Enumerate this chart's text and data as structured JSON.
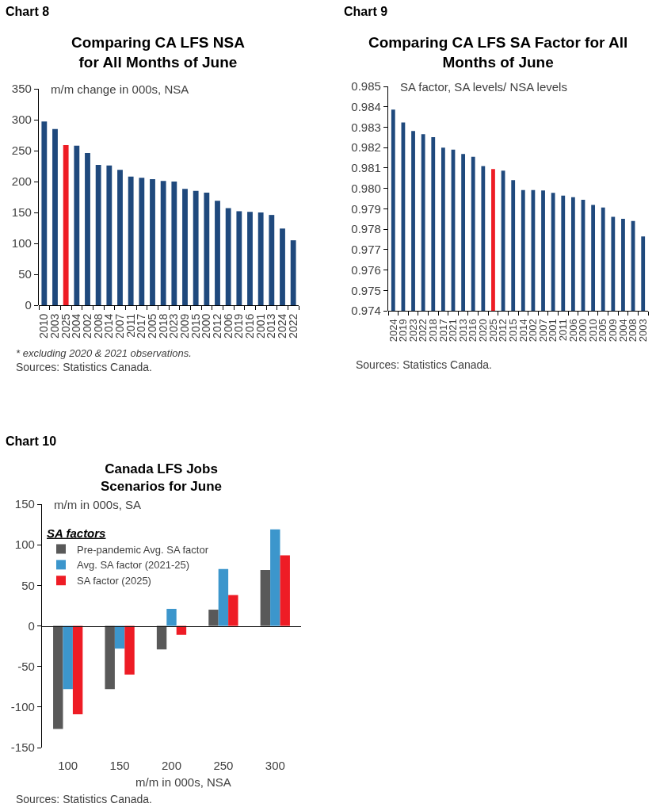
{
  "chart_data": [
    {
      "type": "bar",
      "title": "Comparing CA LFS NSA\nfor All Months of June",
      "ylabel": "m/m change in 000s, NSA",
      "categories": [
        "2010",
        "2003",
        "2025",
        "2004",
        "2002",
        "2008",
        "2014",
        "2007",
        "2011",
        "2017",
        "2005",
        "2018",
        "2023",
        "2009",
        "2015",
        "2000",
        "2012",
        "2006",
        "2019",
        "2016",
        "2001",
        "2013",
        "2024",
        "2022"
      ],
      "values": [
        297,
        285,
        259,
        258,
        246,
        227,
        226,
        219,
        208,
        206,
        204,
        201,
        200,
        188,
        185,
        182,
        169,
        157,
        152,
        151,
        150,
        146,
        124,
        105
      ],
      "colors": [
        "#1f497d",
        "#1f497d",
        "#ee1c25",
        "#1f497d",
        "#1f497d",
        "#1f497d",
        "#1f497d",
        "#1f497d",
        "#1f497d",
        "#1f497d",
        "#1f497d",
        "#1f497d",
        "#1f497d",
        "#1f497d",
        "#1f497d",
        "#1f497d",
        "#1f497d",
        "#1f497d",
        "#1f497d",
        "#1f497d",
        "#1f497d",
        "#1f497d",
        "#1f497d",
        "#1f497d"
      ],
      "ylim": [
        0,
        350
      ],
      "yticks": [
        0,
        50,
        100,
        150,
        200,
        250,
        300,
        350
      ],
      "annotations": [
        "Chart 8",
        "* excluding 2020 & 2021 observations.",
        "Sources: Statistics Canada."
      ]
    },
    {
      "type": "bar",
      "title": "Comparing CA LFS SA Factor for All\nMonths of June",
      "ylabel": "SA factor, SA levels/ NSA levels",
      "categories": [
        "2024",
        "2019",
        "2023",
        "2022",
        "2018",
        "2017",
        "2021",
        "2013",
        "2016",
        "2020",
        "2025",
        "2012",
        "2015",
        "2014",
        "2002",
        "2007",
        "2001",
        "2011",
        "2006",
        "2000",
        "2010",
        "2005",
        "2009",
        "2004",
        "2008",
        "2003"
      ],
      "values": [
        0.98386,
        0.98323,
        0.98281,
        0.98266,
        0.98251,
        0.982,
        0.9819,
        0.98169,
        0.98155,
        0.98109,
        0.98095,
        0.98087,
        0.9804,
        0.97992,
        0.97992,
        0.9799,
        0.97978,
        0.97965,
        0.97957,
        0.97944,
        0.97919,
        0.97906,
        0.97861,
        0.97851,
        0.9784,
        0.97764
      ],
      "colors": [
        "#1f497d",
        "#1f497d",
        "#1f497d",
        "#1f497d",
        "#1f497d",
        "#1f497d",
        "#1f497d",
        "#1f497d",
        "#1f497d",
        "#1f497d",
        "#ee1c25",
        "#1f497d",
        "#1f497d",
        "#1f497d",
        "#1f497d",
        "#1f497d",
        "#1f497d",
        "#1f497d",
        "#1f497d",
        "#1f497d",
        "#1f497d",
        "#1f497d",
        "#1f497d",
        "#1f497d",
        "#1f497d",
        "#1f497d"
      ],
      "ylim": [
        0.974,
        0.985
      ],
      "yticks": [
        0.974,
        0.975,
        0.976,
        0.977,
        0.978,
        0.979,
        {
          "value": 0.98,
          "label": "0.980"
        },
        0.981,
        0.982,
        0.983,
        0.984,
        0.985
      ],
      "annotations": [
        "Chart 9",
        "Sources: Statistics Canada."
      ]
    },
    {
      "type": "bar",
      "title": "Canada LFS Jobs\nScenarios for June",
      "ylabel": "m/m in 000s, SA",
      "xlabel": "m/m in 000s, NSA",
      "legend_title": "SA factors",
      "legend": "top left",
      "categories": [
        "100",
        "150",
        "200",
        "250",
        "300"
      ],
      "series": [
        {
          "name": "Pre-pandemic Avg. SA factor",
          "color": "#595959",
          "values": [
            -127,
            -78,
            -29,
            20,
            69
          ]
        },
        {
          "name": "Avg. SA factor (2021-25)",
          "color": "#3c96cc",
          "values": [
            -78,
            -28,
            21,
            70,
            119
          ]
        },
        {
          "name": "SA factor (2025)",
          "color": "#ee1c25",
          "values": [
            -109,
            -60,
            -11,
            38,
            87
          ]
        }
      ],
      "ylim": [
        -150,
        150
      ],
      "yticks": [
        -150,
        -100,
        -50,
        0,
        50,
        100,
        150
      ],
      "annotations": [
        "Chart 10",
        "Sources: Statistics Canada."
      ]
    }
  ]
}
